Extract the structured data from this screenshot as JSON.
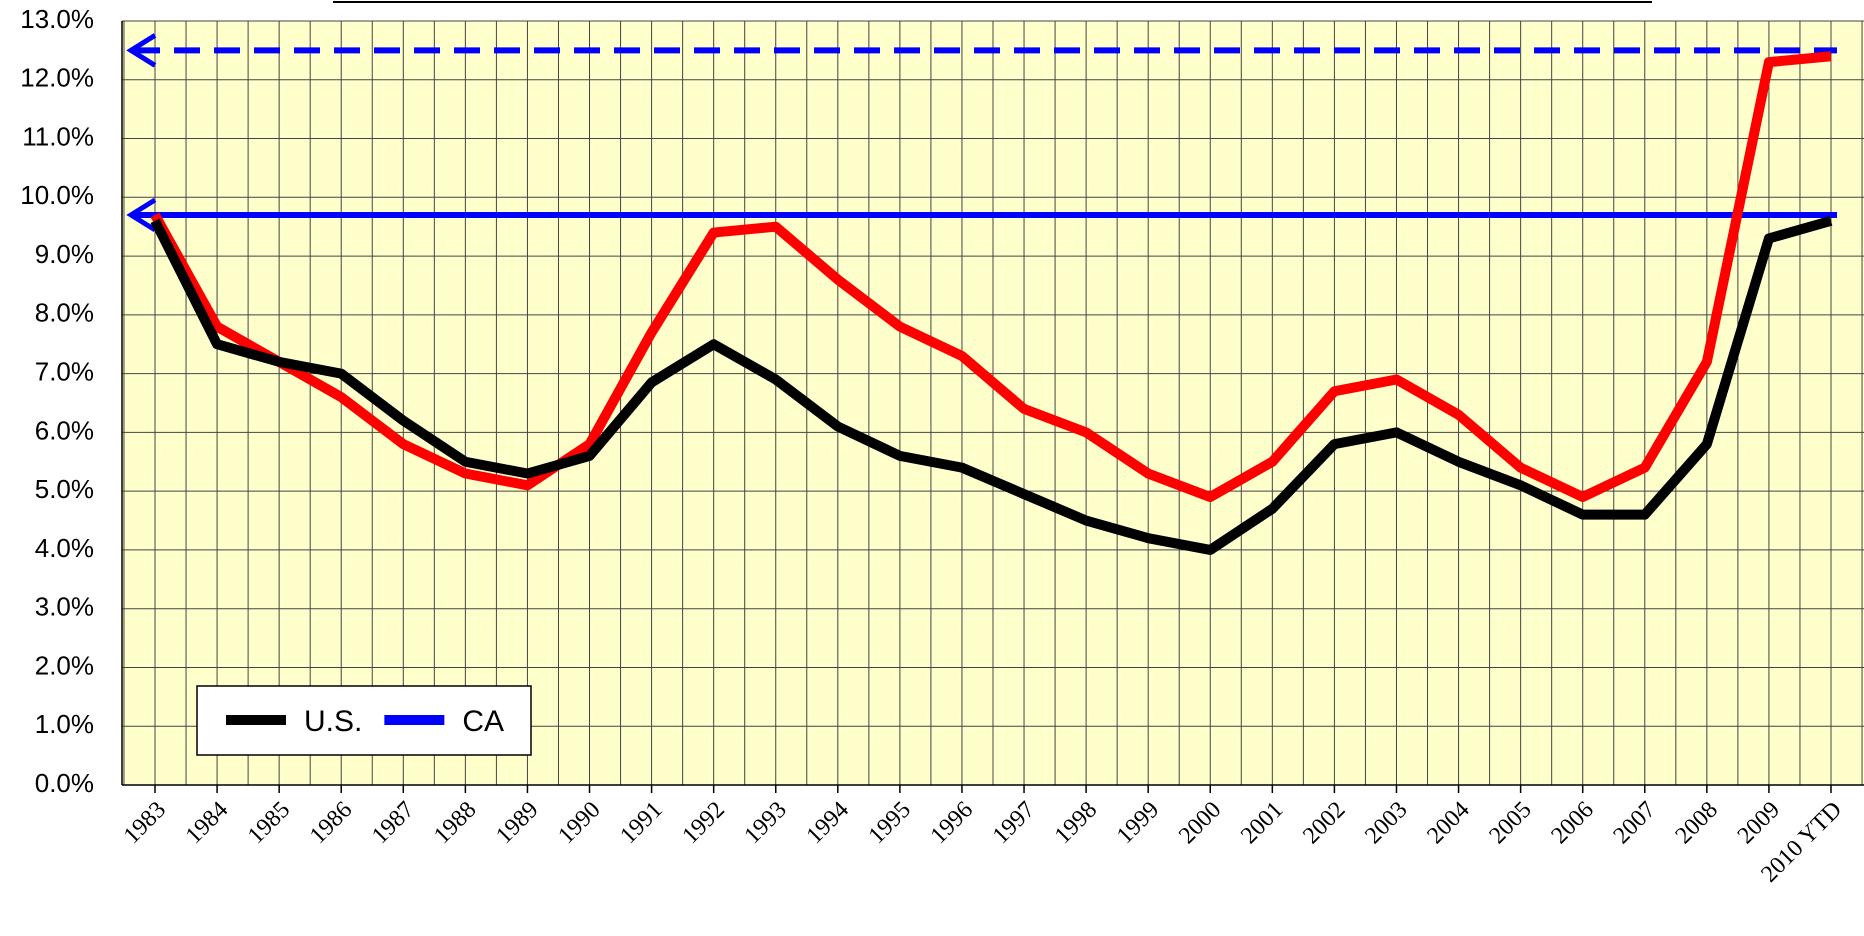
{
  "chart_data": {
    "type": "line",
    "categories": [
      "1983",
      "1984",
      "1985",
      "1986",
      "1987",
      "1988",
      "1989",
      "1990",
      "1991",
      "1992",
      "1993",
      "1994",
      "1995",
      "1996",
      "1997",
      "1998",
      "1999",
      "2000",
      "2001",
      "2002",
      "2003",
      "2004",
      "2005",
      "2006",
      "2007",
      "2008",
      "2009",
      "2010 YTD"
    ],
    "series": [
      {
        "name": "U.S.",
        "color": "#000000",
        "values": [
          9.6,
          7.5,
          7.2,
          7.0,
          6.2,
          5.5,
          5.3,
          5.6,
          6.85,
          7.5,
          6.9,
          6.1,
          5.6,
          5.4,
          4.95,
          4.5,
          4.2,
          4.0,
          4.7,
          5.8,
          6.0,
          5.5,
          5.1,
          4.6,
          4.6,
          5.8,
          9.3,
          9.6
        ]
      },
      {
        "color": "#ff0000",
        "values": [
          9.7,
          7.8,
          7.2,
          6.6,
          5.8,
          5.3,
          5.1,
          5.8,
          7.7,
          9.4,
          9.5,
          8.6,
          7.8,
          7.3,
          6.4,
          6.0,
          5.3,
          4.9,
          5.5,
          6.7,
          6.9,
          6.3,
          5.4,
          4.9,
          5.4,
          7.2,
          12.3,
          12.4
        ]
      }
    ],
    "reference_lines": [
      {
        "name": "CA",
        "color": "#0000ff",
        "value": 9.7,
        "dashed": false
      },
      {
        "color": "#0000ff",
        "value": 12.5,
        "dashed": true
      }
    ],
    "ylim": [
      0,
      13
    ],
    "yticks": [
      {
        "value": 0,
        "label": "0.0%"
      },
      {
        "value": 1,
        "label": "1.0%"
      },
      {
        "value": 2,
        "label": "2.0%"
      },
      {
        "value": 3,
        "label": "3.0%"
      },
      {
        "value": 4,
        "label": "4.0%"
      },
      {
        "value": 5,
        "label": "5.0%"
      },
      {
        "value": 6,
        "label": "6.0%"
      },
      {
        "value": 7,
        "label": "7.0%"
      },
      {
        "value": 8,
        "label": "8.0%"
      },
      {
        "value": 9,
        "label": "9.0%"
      },
      {
        "value": 10,
        "label": "10.0%"
      },
      {
        "value": 11,
        "label": "11.0%"
      },
      {
        "value": 12,
        "label": "12.0%"
      },
      {
        "value": 13,
        "label": "13.0%"
      }
    ],
    "grid": true,
    "legend": "bottom-left",
    "background": "#ffffcc"
  }
}
